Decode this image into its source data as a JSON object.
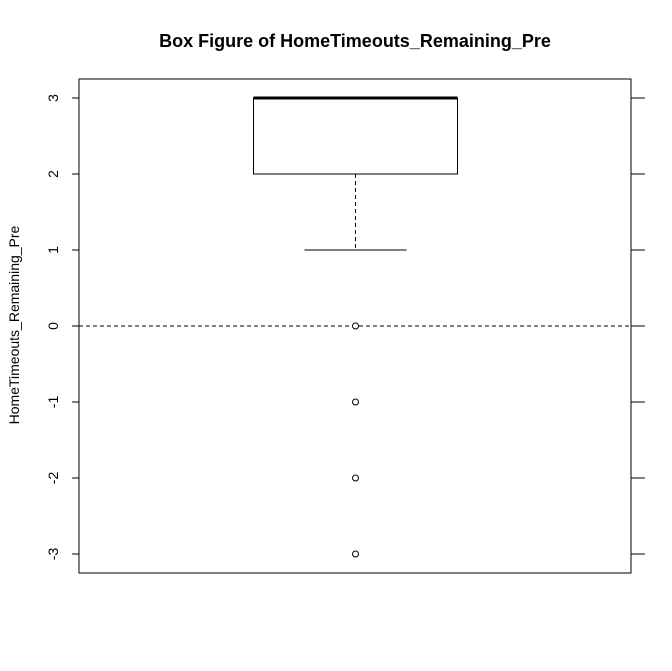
{
  "chart_data": {
    "type": "box",
    "title": "Box Figure of HomeTimeouts_Remaining_Pre",
    "xlabel": "",
    "ylabel": "HomeTimeouts_Remaining_Pre",
    "ylim": [
      -3.25,
      3.25
    ],
    "yticks": [
      3,
      2,
      1,
      0,
      -1,
      -2,
      -3
    ],
    "ytick_labels": [
      "3",
      "2",
      "1",
      "0",
      "-1",
      "-2",
      "-3"
    ],
    "box": {
      "lower_whisker": 1,
      "q1": 2,
      "median": 3,
      "q3": 3,
      "upper_whisker": 3,
      "outliers": [
        0,
        -1,
        -2,
        -3
      ]
    },
    "reference_line": {
      "y": 0,
      "style": "dashed"
    },
    "grid": false,
    "legend": "none",
    "colors": {
      "box_fill": "#ffffff",
      "stroke": "#000000",
      "background": "#ffffff"
    }
  }
}
